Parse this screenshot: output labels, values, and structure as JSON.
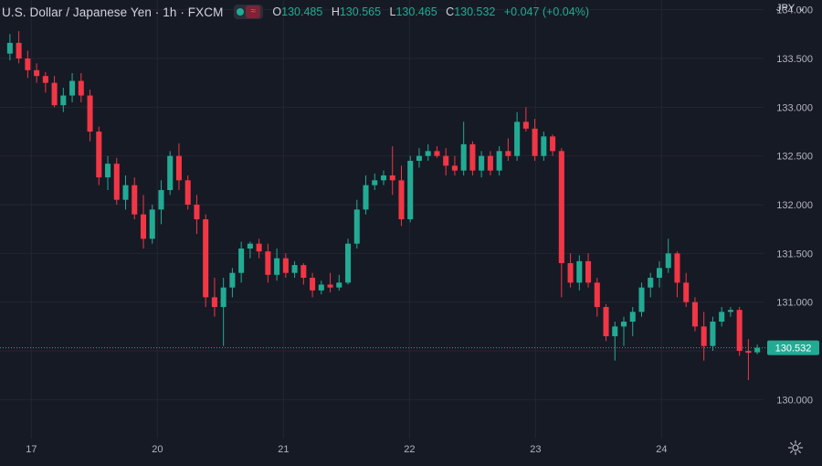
{
  "header": {
    "title": "U.S. Dollar / Japanese Yen · 1h · FXCM",
    "ohlc": {
      "o_label": "O",
      "o_value": "130.485",
      "h_label": "H",
      "h_value": "130.565",
      "l_label": "L",
      "l_value": "130.465",
      "c_label": "C",
      "c_value": "130.532",
      "change": "+0.047 (+0.04%)"
    }
  },
  "currency_selector": "JPY",
  "icons": {
    "visibility": "eye-dot-icon",
    "indicator": "wave-icon",
    "currency_dropdown": "chevron-down-icon",
    "settings": "gear-icon"
  },
  "colors": {
    "background": "#161a25",
    "up": "#22ab94",
    "down": "#f23645",
    "grid": "#232632",
    "axis_text": "#b2b5be",
    "price_label_bg": "#22ab94"
  },
  "chart_data": {
    "type": "candlestick",
    "symbol": "U.S. Dollar / Japanese Yen",
    "interval": "1h",
    "source": "FXCM",
    "y_ticks": [
      "134.000",
      "133.500",
      "133.000",
      "132.500",
      "132.000",
      "131.500",
      "131.000",
      "130.500",
      "130.000"
    ],
    "x_ticks": [
      {
        "label": "17",
        "x": 0.85
      },
      {
        "label": "20",
        "x": 5.85
      },
      {
        "label": "21",
        "x": 10.85
      },
      {
        "label": "22",
        "x": 15.85
      },
      {
        "label": "23",
        "x": 20.85
      },
      {
        "label": "24",
        "x": 25.85
      }
    ],
    "ylim": [
      129.6,
      134.1
    ],
    "current_price": "130.532",
    "grid": true,
    "candles": [
      [
        133.55,
        133.75,
        133.48,
        133.66
      ],
      [
        133.66,
        133.78,
        133.45,
        133.5
      ],
      [
        133.5,
        133.58,
        133.3,
        133.38
      ],
      [
        133.38,
        133.45,
        133.25,
        133.32
      ],
      [
        133.32,
        133.36,
        133.15,
        133.25
      ],
      [
        133.25,
        133.32,
        133.0,
        133.02
      ],
      [
        133.02,
        133.2,
        132.95,
        133.12
      ],
      [
        133.12,
        133.35,
        133.05,
        133.27
      ],
      [
        133.27,
        133.35,
        133.05,
        133.12
      ],
      [
        133.12,
        133.18,
        132.65,
        132.75
      ],
      [
        132.75,
        132.8,
        132.2,
        132.28
      ],
      [
        132.28,
        132.5,
        132.15,
        132.42
      ],
      [
        132.42,
        132.48,
        132.0,
        132.05
      ],
      [
        132.05,
        132.3,
        131.95,
        132.2
      ],
      [
        132.2,
        132.28,
        131.85,
        131.9
      ],
      [
        131.9,
        132.1,
        131.55,
        131.65
      ],
      [
        131.65,
        132.0,
        131.6,
        131.95
      ],
      [
        131.95,
        132.25,
        131.8,
        132.15
      ],
      [
        132.15,
        132.55,
        132.1,
        132.5
      ],
      [
        132.5,
        132.63,
        132.15,
        132.25
      ],
      [
        132.25,
        132.3,
        131.95,
        132.0
      ],
      [
        132.0,
        132.1,
        131.7,
        131.85
      ],
      [
        131.85,
        131.9,
        130.95,
        131.05
      ],
      [
        131.05,
        131.25,
        130.85,
        130.95
      ],
      [
        130.95,
        131.25,
        130.55,
        131.15
      ],
      [
        131.15,
        131.35,
        131.05,
        131.3
      ],
      [
        131.3,
        131.62,
        131.2,
        131.55
      ],
      [
        131.55,
        131.62,
        131.45,
        131.6
      ],
      [
        131.6,
        131.65,
        131.45,
        131.52
      ],
      [
        131.52,
        131.6,
        131.2,
        131.28
      ],
      [
        131.28,
        131.55,
        131.22,
        131.45
      ],
      [
        131.45,
        131.5,
        131.25,
        131.3
      ],
      [
        131.3,
        131.42,
        131.25,
        131.38
      ],
      [
        131.38,
        131.4,
        131.18,
        131.25
      ],
      [
        131.25,
        131.3,
        131.05,
        131.12
      ],
      [
        131.12,
        131.22,
        131.08,
        131.18
      ],
      [
        131.18,
        131.3,
        131.1,
        131.15
      ],
      [
        131.15,
        131.28,
        131.12,
        131.2
      ],
      [
        131.2,
        131.65,
        131.18,
        131.6
      ],
      [
        131.6,
        132.05,
        131.55,
        131.95
      ],
      [
        131.95,
        132.3,
        131.9,
        132.2
      ],
      [
        132.2,
        132.32,
        132.15,
        132.25
      ],
      [
        132.25,
        132.35,
        132.2,
        132.3
      ],
      [
        132.3,
        132.6,
        132.1,
        132.25
      ],
      [
        132.25,
        132.4,
        131.78,
        131.85
      ],
      [
        131.85,
        132.5,
        131.82,
        132.45
      ],
      [
        132.45,
        132.58,
        132.38,
        132.5
      ],
      [
        132.5,
        132.62,
        132.45,
        132.55
      ],
      [
        132.55,
        132.6,
        132.48,
        132.5
      ],
      [
        132.5,
        132.58,
        132.3,
        132.4
      ],
      [
        132.4,
        132.5,
        132.3,
        132.35
      ],
      [
        132.35,
        132.85,
        132.3,
        132.62
      ],
      [
        132.62,
        132.65,
        132.3,
        132.35
      ],
      [
        132.35,
        132.55,
        132.28,
        132.5
      ],
      [
        132.5,
        132.55,
        132.3,
        132.35
      ],
      [
        132.35,
        132.6,
        132.3,
        132.55
      ],
      [
        132.55,
        132.68,
        132.45,
        132.5
      ],
      [
        132.5,
        132.95,
        132.45,
        132.85
      ],
      [
        132.85,
        133.0,
        132.75,
        132.78
      ],
      [
        132.78,
        132.88,
        132.45,
        132.5
      ],
      [
        132.5,
        132.75,
        132.45,
        132.7
      ],
      [
        132.7,
        132.72,
        132.5,
        132.55
      ],
      [
        132.55,
        132.58,
        131.05,
        131.4
      ],
      [
        131.4,
        131.5,
        131.15,
        131.2
      ],
      [
        131.2,
        131.48,
        131.12,
        131.42
      ],
      [
        131.42,
        131.5,
        131.15,
        131.2
      ],
      [
        131.2,
        131.25,
        130.85,
        130.95
      ],
      [
        130.95,
        130.98,
        130.6,
        130.65
      ],
      [
        130.65,
        130.8,
        130.4,
        130.75
      ],
      [
        130.75,
        130.85,
        130.55,
        130.8
      ],
      [
        130.8,
        130.95,
        130.65,
        130.9
      ],
      [
        130.9,
        131.2,
        130.85,
        131.15
      ],
      [
        131.15,
        131.3,
        131.05,
        131.25
      ],
      [
        131.25,
        131.42,
        131.15,
        131.35
      ],
      [
        131.35,
        131.65,
        131.3,
        131.5
      ],
      [
        131.5,
        131.52,
        131.05,
        131.2
      ],
      [
        131.2,
        131.3,
        130.95,
        131.0
      ],
      [
        131.0,
        131.05,
        130.7,
        130.75
      ],
      [
        130.75,
        130.9,
        130.4,
        130.55
      ],
      [
        130.55,
        130.85,
        130.5,
        130.8
      ],
      [
        130.8,
        130.95,
        130.75,
        130.9
      ],
      [
        130.9,
        130.95,
        130.85,
        130.92
      ],
      [
        130.92,
        130.95,
        130.45,
        130.5
      ],
      [
        130.5,
        130.62,
        130.2,
        130.48
      ],
      [
        130.485,
        130.565,
        130.465,
        130.532
      ]
    ]
  }
}
